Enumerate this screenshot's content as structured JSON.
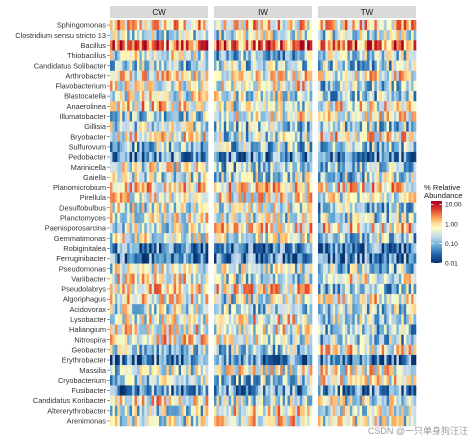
{
  "chart_data": {
    "type": "heatmap",
    "panels": [
      "CW",
      "IW",
      "TW"
    ],
    "rows": [
      "Sphingomonas",
      "Clostridium sensu stricto 13",
      "Bacillus",
      "Thiobacillus",
      "Candidatus Solibacter",
      "Arthrobacter",
      "Flavobacterium",
      "Blastocatella",
      "Anaerolinea",
      "Illumatobacter",
      "Gillisia",
      "Bryobacter",
      "Sulfurovum",
      "Pedobacter",
      "Marinicella",
      "Gaiella",
      "Planomicrobium",
      "Pirellula",
      "Desulfobulbus",
      "Planctomyces",
      "Paenisporosarcina",
      "Gemmatimonas",
      "Robiginitalea",
      "Ferruginibacter",
      "Pseudomonas",
      "Variibacter",
      "Pseudolabrys",
      "Algoriphagus",
      "Acidovorax",
      "Lysobacter",
      "Haliangium",
      "Nitrospira",
      "Geobacter",
      "Erythrobacter",
      "Massilia",
      "Cryobacterium",
      "Fusibacter",
      "Candidatus Koribacter",
      "Altererythrobacter",
      "Arenimonas"
    ],
    "z": [],
    "color_scale": {
      "log": true,
      "colors": [
        "#08306b",
        "#2166ac",
        "#6baed6",
        "#c6dbef",
        "#ffffbf",
        "#fdae61",
        "#e0412b",
        "#a50026"
      ],
      "range": [
        0.01,
        15
      ]
    },
    "legend": {
      "title": "% Relative Abundance",
      "ticks": [
        "10.00",
        "1.00",
        "0.10",
        "0.01"
      ],
      "placement": "right"
    }
  },
  "watermark": "CSDN @一只单身狗汪汪"
}
